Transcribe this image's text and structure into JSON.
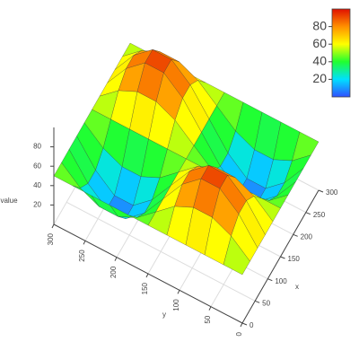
{
  "chart_data": {
    "type": "surface",
    "x": [
      0,
      30,
      60,
      90,
      120,
      150,
      180,
      210,
      240,
      270,
      300
    ],
    "y": [
      0,
      30,
      60,
      90,
      120,
      150,
      180,
      210,
      240,
      270,
      300
    ],
    "z": [
      [
        50,
        50,
        50,
        50,
        50,
        50,
        50,
        50,
        50,
        50,
        50
      ],
      [
        50,
        66,
        75,
        75,
        66,
        50,
        34,
        25,
        25,
        34,
        50
      ],
      [
        50,
        75,
        91,
        91,
        75,
        50,
        25,
        9,
        9,
        25,
        50
      ],
      [
        50,
        75,
        91,
        91,
        75,
        50,
        25,
        9,
        9,
        25,
        50
      ],
      [
        50,
        66,
        75,
        75,
        66,
        50,
        34,
        25,
        25,
        34,
        50
      ],
      [
        50,
        50,
        50,
        50,
        50,
        50,
        50,
        50,
        50,
        50,
        50
      ],
      [
        50,
        34,
        25,
        25,
        34,
        50,
        66,
        75,
        75,
        66,
        50
      ],
      [
        50,
        25,
        9,
        9,
        25,
        50,
        75,
        91,
        91,
        75,
        50
      ],
      [
        50,
        25,
        9,
        9,
        25,
        50,
        75,
        91,
        91,
        75,
        50
      ],
      [
        50,
        34,
        25,
        25,
        34,
        50,
        66,
        75,
        75,
        66,
        50
      ],
      [
        50,
        50,
        50,
        50,
        50,
        50,
        50,
        50,
        50,
        50,
        50
      ]
    ],
    "x_label": "x",
    "y_label": "y",
    "z_label": "value",
    "xlim": [
      0,
      300
    ],
    "ylim": [
      0,
      300
    ],
    "zlim": [
      0,
      100
    ],
    "xticks": [
      0,
      50,
      100,
      150,
      200,
      250,
      300
    ],
    "yticks": [
      0,
      50,
      100,
      150,
      200,
      250,
      300
    ],
    "zticks": [
      20,
      40,
      60,
      80
    ],
    "colorscale": [
      "#3050ff",
      "#00e0ff",
      "#20ff30",
      "#ffff00",
      "#ff9000",
      "#e01000"
    ],
    "grid": true
  }
}
